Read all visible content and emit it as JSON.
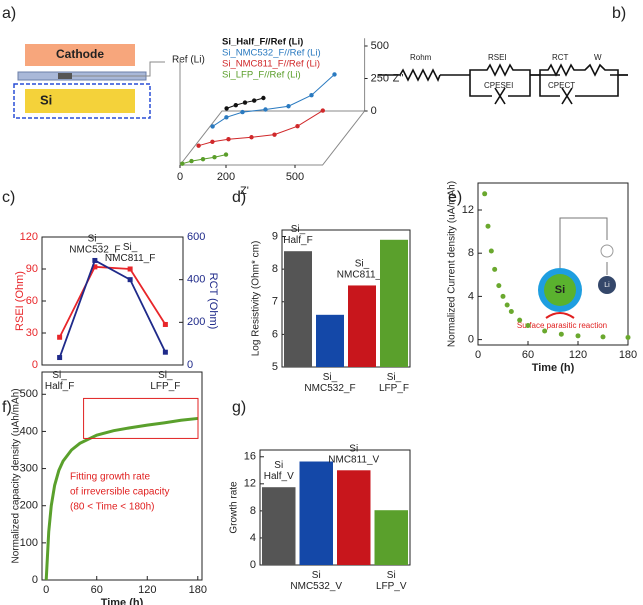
{
  "panels": [
    "a)",
    "b)",
    "c)",
    "d)",
    "e)",
    "f)",
    "g)"
  ],
  "schematic": {
    "cathode": "Cathode",
    "reference": "Ref (Li)",
    "anode": "Si"
  },
  "circuit": {
    "labels": [
      "Rohm",
      "RSEI",
      "CPESEI",
      "RCT",
      "CPECT",
      "W"
    ]
  },
  "inset": {
    "si": "Si",
    "li": "Li",
    "caption": "Surface parasitic reaction"
  },
  "chart_data": [
    {
      "type": "line3d",
      "xlabel": "Z'",
      "ylabel": "Z''",
      "xticks": [
        0,
        200,
        500
      ],
      "yticks": [
        0,
        250,
        500
      ],
      "series": [
        {
          "name": "Si_Half_F//Ref (Li)",
          "color": "#111111",
          "x": [
            20,
            60,
            100,
            140,
            180
          ],
          "values": [
            20,
            45,
            65,
            80,
            100
          ]
        },
        {
          "name": "Si_NMC532_F//Ref (Li)",
          "color": "#2a7ac0",
          "x": [
            20,
            80,
            150,
            250,
            350,
            450,
            550
          ],
          "values": [
            20,
            90,
            130,
            150,
            175,
            260,
            420
          ]
        },
        {
          "name": "Si_NMC811_F//Ref (Li)",
          "color": "#d0282a",
          "x": [
            20,
            80,
            150,
            250,
            350,
            450,
            560
          ],
          "values": [
            10,
            40,
            60,
            75,
            95,
            160,
            280
          ]
        },
        {
          "name": "Si_LFP_F//Ref (Li)",
          "color": "#5a9e2a",
          "x": [
            10,
            50,
            100,
            150,
            200
          ],
          "values": [
            10,
            30,
            45,
            60,
            80
          ]
        }
      ]
    },
    {
      "type": "line",
      "ylabel": "RSEI (Ohm)",
      "y2label": "RCT (Ohm)",
      "categories": [
        "Si_\nHalf_F",
        "Si_\nNMC532_F",
        "Si_\nNMC811_F",
        "Si_\nLFP_F"
      ],
      "ylim": [
        0,
        120
      ],
      "yticks": [
        0,
        30,
        60,
        90,
        120
      ],
      "y2lim": [
        0,
        600
      ],
      "y2ticks": [
        0,
        200,
        400,
        600
      ],
      "series": [
        {
          "color": "#e8262a",
          "values": [
            26,
            92,
            90,
            38
          ]
        },
        {
          "color": "#1f2a8a",
          "axis": "y2",
          "values": [
            35,
            490,
            400,
            60
          ]
        }
      ]
    },
    {
      "type": "bar",
      "ylabel": "Log Resistivity (Ohm* cm)",
      "categories": [
        "Si_\nHalf_F",
        "Si_\nNMC532_F",
        "Si_\nNMC811_F",
        "Si_\nLFP_F"
      ],
      "values": [
        8.55,
        6.6,
        7.5,
        8.9
      ],
      "colors": [
        "#555555",
        "#1448a8",
        "#c8161c",
        "#5aa02c"
      ],
      "ylim": [
        5,
        9.2
      ],
      "yticks": [
        5,
        6,
        7,
        8,
        9
      ]
    },
    {
      "type": "scatter",
      "xlabel": "Time (h)",
      "ylabel": "Normalized Current density (uA/mAh)",
      "color": "#6aa82e",
      "x": [
        8,
        12,
        16,
        20,
        25,
        30,
        35,
        40,
        50,
        60,
        80,
        100,
        120,
        150,
        180
      ],
      "values": [
        13.5,
        10.5,
        8.2,
        6.5,
        5,
        4,
        3.2,
        2.6,
        1.8,
        1.3,
        0.8,
        0.5,
        0.35,
        0.25,
        0.2
      ],
      "xlim": [
        0,
        180
      ],
      "xticks": [
        0,
        60,
        120,
        180
      ],
      "ylim": [
        -0.5,
        14.5
      ],
      "yticks": [
        0,
        4,
        8,
        12
      ]
    },
    {
      "type": "line",
      "xlabel": "Time (h)",
      "ylabel": "Normalized capacity density (uAh/mAh)",
      "color": "#5aa02c",
      "x": [
        0,
        3,
        6,
        10,
        15,
        20,
        30,
        40,
        60,
        80,
        100,
        120,
        140,
        160,
        180
      ],
      "values": [
        0,
        130,
        200,
        255,
        295,
        320,
        350,
        368,
        390,
        402,
        410,
        417,
        423,
        430,
        435
      ],
      "xlim": [
        -5,
        185
      ],
      "xticks": [
        0,
        60,
        120,
        180
      ],
      "ylim": [
        0,
        560
      ],
      "yticks": [
        0,
        100,
        200,
        300,
        400,
        500
      ],
      "annotation": [
        "Fitting growth rate",
        "of irreversible capacity",
        "(80 < Time < 180h)"
      ]
    },
    {
      "type": "bar",
      "ylabel": "Growth rate",
      "categories": [
        "Si\nHalf_V",
        "Si\nNMC532_V",
        "Si\nNMC811_V",
        "Si\nLFP_V"
      ],
      "values": [
        11.5,
        15.3,
        14,
        8.1
      ],
      "colors": [
        "#555555",
        "#1448a8",
        "#c8161c",
        "#5aa02c"
      ],
      "ylim": [
        0,
        17
      ],
      "yticks": [
        0,
        4,
        8,
        12,
        16
      ]
    }
  ]
}
